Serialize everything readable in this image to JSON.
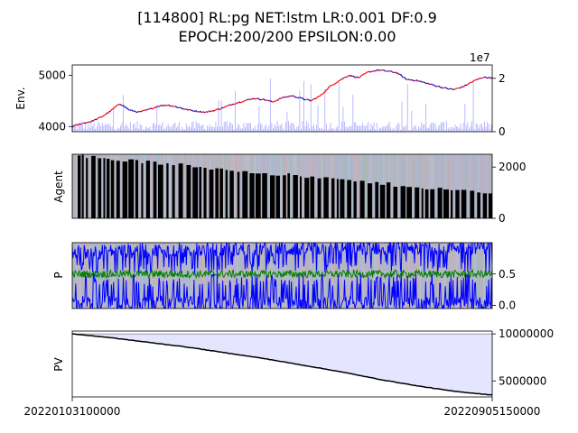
{
  "figure": {
    "title_line1": "[114800] RL:pg NET:lstm LR:0.001 DF:0.9",
    "title_line2": "EPOCH:200/200 EPSILON:0.00",
    "x_start_label": "20220103100000",
    "x_end_label": "20220905150000"
  },
  "colors": {
    "price": "#0000cc",
    "price_up": "#ff0000",
    "volume": "#aaaaff",
    "agent_hold": "#000000",
    "prob_buy": "#0000ff",
    "prob_hold": "#008000",
    "pv_fill": "#e5e5ff",
    "pv_line": "#000000"
  },
  "chart_data": [
    {
      "type": "line",
      "ylabel": "Env.",
      "left_ticks": [
        "4000",
        "5000"
      ],
      "left_range": [
        3900,
        5200
      ],
      "right_ticks": [
        "0",
        "2"
      ],
      "right_offset_label": "1e7",
      "right_range": [
        0,
        2.5
      ],
      "series": [
        {
          "values": [
            4000,
            4060,
            4100,
            4180,
            4300,
            4450,
            4320,
            4280,
            4330,
            4400,
            4420,
            4380,
            4330,
            4300,
            4280,
            4320,
            4380,
            4450,
            4500,
            4550,
            4530,
            4480,
            4560,
            4600,
            4550,
            4500,
            4600,
            4780,
            4900,
            5000,
            4950,
            5060,
            5100,
            5080,
            5050,
            4920,
            4900,
            4850,
            4800,
            4750,
            4720,
            4780,
            4880,
            4960,
            4950
          ]
        }
      ]
    },
    {
      "type": "bar",
      "ylabel": "Agent",
      "right_ticks": [
        "0",
        "2000"
      ],
      "range": [
        0,
        2500
      ]
    },
    {
      "type": "line",
      "ylabel": "P",
      "right_ticks": [
        "0.0",
        "0.5"
      ],
      "range": [
        -0.05,
        1.0
      ],
      "series": [
        {
          "values": [
            0.85,
            0.87,
            0.89,
            0.9,
            0.92,
            0.93,
            0.94
          ]
        },
        {
          "values": [
            0.5,
            0.5,
            0.5,
            0.5,
            0.5,
            0.5,
            0.5
          ]
        },
        {
          "values": [
            0.05,
            0.04,
            0.03,
            0.03,
            0.02,
            0.02,
            0.02
          ]
        }
      ]
    },
    {
      "type": "area",
      "ylabel": "PV",
      "right_ticks": [
        "5000000",
        "10000000"
      ],
      "range": [
        3300000,
        10300000
      ],
      "baseline": 10000000,
      "series": [
        {
          "values": [
            10000000,
            9600000,
            9100000,
            8600000,
            8000000,
            7400000,
            6700000,
            6000000,
            5200000,
            4500000,
            3900000,
            3500000
          ]
        }
      ]
    }
  ]
}
